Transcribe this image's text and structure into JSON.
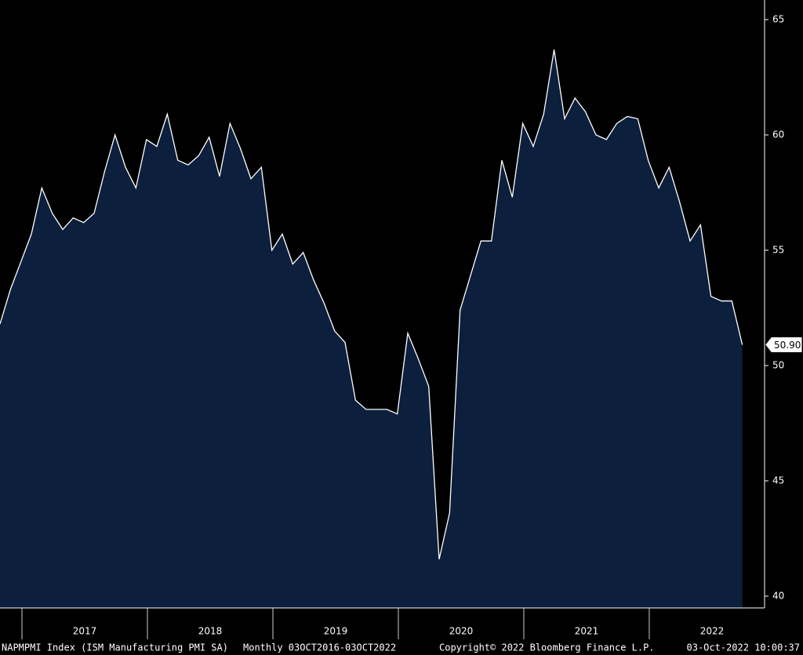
{
  "chart_data": {
    "type": "area",
    "series": [
      {
        "name": "NAPMPMI Index (ISM Manufacturing PMI SA)",
        "color": "#ffffff",
        "fill": "#0c1f3d",
        "values": [
          51.8,
          53.3,
          54.5,
          55.7,
          57.7,
          56.6,
          55.9,
          56.4,
          56.2,
          56.6,
          58.4,
          60.0,
          58.6,
          57.7,
          59.8,
          59.5,
          60.9,
          58.9,
          58.7,
          59.1,
          59.9,
          58.2,
          60.5,
          59.4,
          58.1,
          58.6,
          55.0,
          55.7,
          54.4,
          54.9,
          53.7,
          52.7,
          51.5,
          51.0,
          48.5,
          48.1,
          48.1,
          48.1,
          47.9,
          51.4,
          50.3,
          49.1,
          41.6,
          43.6,
          52.4,
          53.9,
          55.4,
          55.4,
          58.9,
          57.3,
          60.5,
          59.5,
          60.9,
          63.7,
          60.7,
          61.6,
          61.0,
          60.0,
          59.8,
          60.5,
          60.8,
          60.7,
          58.9,
          57.7,
          58.6,
          57.1,
          55.4,
          56.1,
          53.0,
          52.8,
          52.8,
          50.9
        ],
        "value_labels": [
          null,
          null,
          null,
          null,
          null,
          null,
          null,
          null,
          null,
          null,
          null,
          null,
          null,
          null,
          null,
          null,
          null,
          null,
          null,
          null,
          null,
          null,
          null,
          null,
          null,
          null,
          null,
          null,
          null,
          null,
          null,
          null,
          null,
          null,
          null,
          null,
          null,
          null,
          null,
          null,
          null,
          null,
          null,
          null,
          null,
          null,
          null,
          null,
          null,
          null,
          null,
          null,
          null,
          null,
          null,
          null,
          null,
          null,
          null,
          null,
          null,
          null,
          null,
          null,
          null,
          null,
          null,
          null,
          null,
          null,
          null,
          "50.90"
        ]
      }
    ],
    "year_labels": [
      "2017",
      "2018",
      "2019",
      "2020",
      "2021",
      "2022"
    ],
    "ylim": [
      40,
      65
    ],
    "yticks": [
      40,
      45,
      50,
      55,
      60,
      65
    ],
    "footer": {
      "ticker": "NAPMPMI Index (ISM Manufacturing PMI SA)",
      "period": "Monthly 03OCT2016-03OCT2022",
      "copyright": "Copyright© 2022 Bloomberg Finance L.P.",
      "timestamp": "03-Oct-2022 10:00:37"
    }
  }
}
